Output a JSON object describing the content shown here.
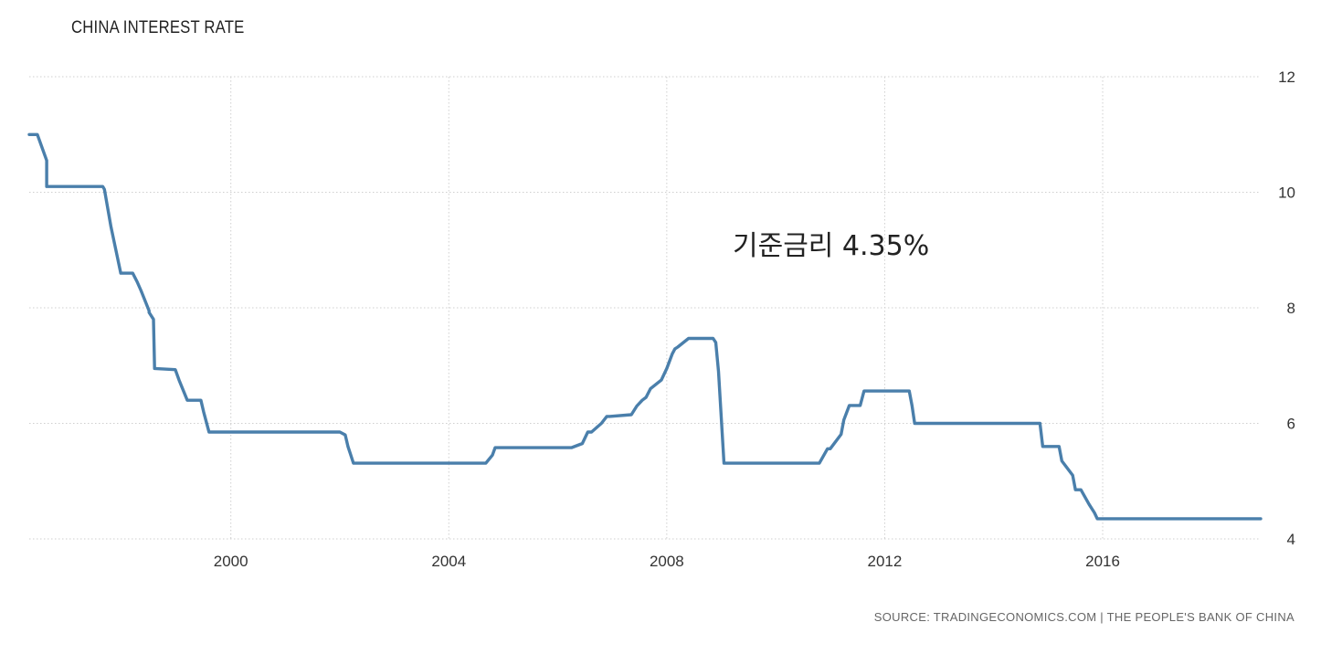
{
  "chart_data": {
    "type": "line",
    "title": "CHINA INTEREST RATE",
    "annotation": "기준금리 4.35%",
    "source": "SOURCE: TRADINGECONOMICS.COM | THE PEOPLE'S BANK OF CHINA",
    "xlabel": "",
    "ylabel": "",
    "x_ticks": [
      2000,
      2004,
      2008,
      2012,
      2016
    ],
    "y_ticks": [
      4,
      6,
      8,
      10,
      12
    ],
    "ylim": [
      4,
      12
    ],
    "xlim": [
      1996.3,
      2018.9
    ],
    "grid": true,
    "y_axis_side": "right",
    "line_color": "#4a7fab",
    "series": [
      {
        "name": "",
        "x": [
          1996.3,
          1996.45,
          1996.62,
          1996.62,
          1997.65,
          1997.68,
          1997.8,
          1997.98,
          1997.98,
          1998.2,
          1998.28,
          1998.35,
          1998.5,
          1998.5,
          1998.58,
          1998.6,
          1998.98,
          1999.05,
          1999.2,
          1999.45,
          1999.5,
          1999.6,
          2002.0,
          2002.1,
          2002.15,
          2002.25,
          2004.35,
          2004.68,
          2004.8,
          2004.85,
          2006.25,
          2006.45,
          2006.55,
          2006.62,
          2006.8,
          2006.9,
          2006.95,
          2007.35,
          2007.45,
          2007.55,
          2007.62,
          2007.7,
          2007.9,
          2008.0,
          2008.1,
          2008.15,
          2008.2,
          2008.4,
          2008.6,
          2008.7,
          2008.85,
          2008.9,
          2008.95,
          2009.05,
          2010.8,
          2010.95,
          2011.0,
          2011.2,
          2011.25,
          2011.35,
          2011.55,
          2011.62,
          2012.45,
          2012.5,
          2012.55,
          2014.85,
          2014.9,
          2015.2,
          2015.25,
          2015.45,
          2015.5,
          2015.6,
          2015.75,
          2015.85,
          2015.9,
          2018.9
        ],
        "values": [
          11.0,
          11.0,
          10.55,
          10.1,
          10.1,
          10.05,
          9.4,
          8.6,
          8.6,
          8.6,
          8.45,
          8.3,
          7.95,
          7.92,
          7.8,
          6.95,
          6.93,
          6.75,
          6.4,
          6.4,
          6.2,
          5.85,
          5.85,
          5.8,
          5.6,
          5.31,
          5.31,
          5.31,
          5.45,
          5.58,
          5.58,
          5.65,
          5.85,
          5.85,
          6.0,
          6.12,
          6.12,
          6.15,
          6.3,
          6.4,
          6.45,
          6.6,
          6.75,
          6.95,
          7.2,
          7.29,
          7.32,
          7.47,
          7.47,
          7.47,
          7.47,
          7.4,
          6.9,
          5.31,
          5.31,
          5.56,
          5.56,
          5.81,
          6.06,
          6.31,
          6.31,
          6.56,
          6.56,
          6.31,
          6.0,
          6.0,
          5.6,
          5.6,
          5.35,
          5.1,
          4.85,
          4.85,
          4.6,
          4.45,
          4.35,
          4.35
        ]
      }
    ]
  }
}
